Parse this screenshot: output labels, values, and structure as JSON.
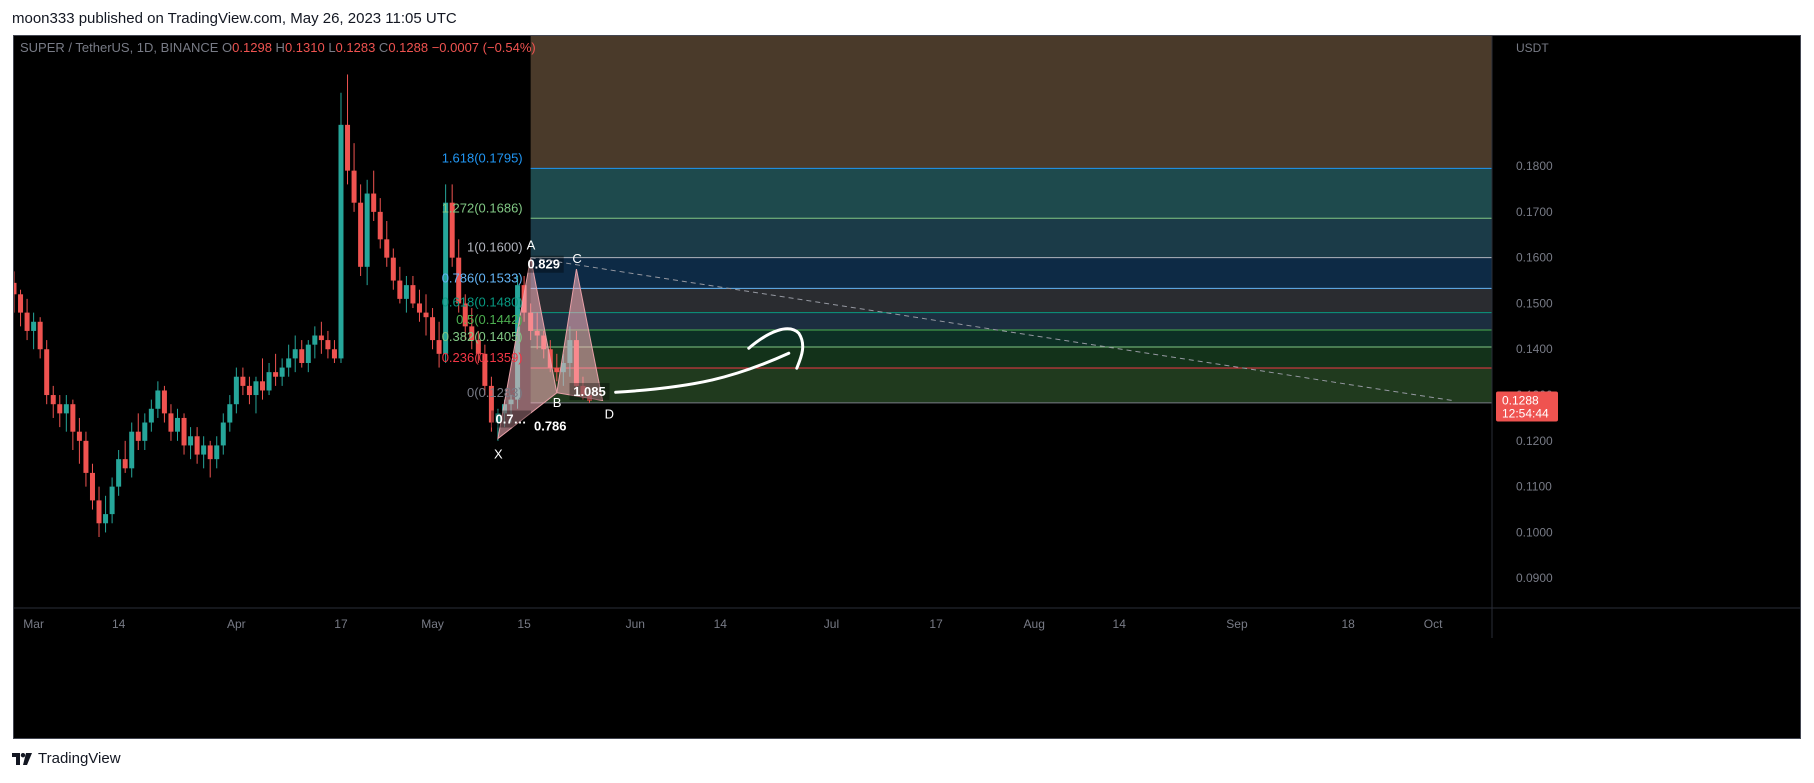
{
  "header": {
    "published": "moon333 published on TradingView.com, May 26, 2023 11:05 UTC"
  },
  "footer": {
    "brand": "TradingView",
    "logo_icon": "tradingview-logo-icon"
  },
  "colors": {
    "background": "#000000",
    "up_candle": "#26a69a",
    "down_candle": "#ef5350",
    "price_tag": "#ef5350",
    "grid_text": "#787b86"
  },
  "chart_data": {
    "type": "candlestick",
    "symbol_line": {
      "symbol": "SUPER / TetherUS, 1D, BINANCE",
      "o_label": "O",
      "o": "0.1298",
      "h_label": "H",
      "h": "0.1310",
      "l_label": "L",
      "l": "0.1283",
      "c_label": "C",
      "c": "0.1288",
      "change": "−0.0007 (−0.54%)"
    },
    "y_axis": {
      "unit": "USDT",
      "ticks": [
        "0.1800",
        "0.1700",
        "0.1600",
        "0.1500",
        "0.1400",
        "0.1300",
        "0.1200",
        "0.1100",
        "0.1000",
        "0.0900"
      ],
      "tick_values": [
        0.18,
        0.17,
        0.16,
        0.15,
        0.14,
        0.13,
        0.12,
        0.11,
        0.1,
        0.09
      ],
      "range": [
        0.0835,
        0.2084
      ]
    },
    "x_axis": {
      "ticks": [
        "Mar",
        "14",
        "Apr",
        "17",
        "May",
        "15",
        "Jun",
        "14",
        "Jul",
        "17",
        "Aug",
        "14",
        "Sep",
        "18",
        "Oct"
      ],
      "tick_dates": [
        "2023-03-01",
        "2023-03-14",
        "2023-04-01",
        "2023-04-17",
        "2023-05-01",
        "2023-05-15",
        "2023-06-01",
        "2023-06-14",
        "2023-07-01",
        "2023-07-17",
        "2023-08-01",
        "2023-08-14",
        "2023-09-01",
        "2023-09-18",
        "2023-10-01"
      ],
      "range": [
        "2023-02-26",
        "2023-10-10"
      ]
    },
    "last_price": {
      "value": "0.1288",
      "countdown": "12:54:44"
    },
    "candles": {
      "start_date": "2023-02-26",
      "ohlc": [
        [
          0.1545,
          0.157,
          0.148,
          0.152
        ],
        [
          0.152,
          0.153,
          0.145,
          0.148
        ],
        [
          0.148,
          0.151,
          0.142,
          0.144
        ],
        [
          0.144,
          0.148,
          0.14,
          0.146
        ],
        [
          0.146,
          0.147,
          0.138,
          0.14
        ],
        [
          0.14,
          0.142,
          0.128,
          0.13
        ],
        [
          0.13,
          0.132,
          0.125,
          0.128
        ],
        [
          0.128,
          0.13,
          0.123,
          0.126
        ],
        [
          0.126,
          0.13,
          0.122,
          0.128
        ],
        [
          0.128,
          0.129,
          0.118,
          0.122
        ],
        [
          0.122,
          0.125,
          0.115,
          0.12
        ],
        [
          0.12,
          0.122,
          0.11,
          0.113
        ],
        [
          0.113,
          0.115,
          0.105,
          0.107
        ],
        [
          0.107,
          0.11,
          0.099,
          0.102
        ],
        [
          0.102,
          0.108,
          0.1,
          0.104
        ],
        [
          0.104,
          0.112,
          0.102,
          0.11
        ],
        [
          0.11,
          0.118,
          0.108,
          0.116
        ],
        [
          0.116,
          0.12,
          0.113,
          0.114
        ],
        [
          0.114,
          0.124,
          0.112,
          0.122
        ],
        [
          0.122,
          0.126,
          0.118,
          0.12
        ],
        [
          0.12,
          0.126,
          0.118,
          0.124
        ],
        [
          0.124,
          0.129,
          0.122,
          0.127
        ],
        [
          0.127,
          0.133,
          0.125,
          0.131
        ],
        [
          0.131,
          0.132,
          0.124,
          0.126
        ],
        [
          0.126,
          0.128,
          0.12,
          0.122
        ],
        [
          0.122,
          0.127,
          0.12,
          0.125
        ],
        [
          0.125,
          0.126,
          0.117,
          0.119
        ],
        [
          0.119,
          0.123,
          0.116,
          0.121
        ],
        [
          0.121,
          0.123,
          0.115,
          0.117
        ],
        [
          0.117,
          0.121,
          0.114,
          0.119
        ],
        [
          0.119,
          0.12,
          0.112,
          0.116
        ],
        [
          0.116,
          0.121,
          0.114,
          0.119
        ],
        [
          0.119,
          0.126,
          0.117,
          0.124
        ],
        [
          0.124,
          0.13,
          0.122,
          0.128
        ],
        [
          0.128,
          0.136,
          0.126,
          0.134
        ],
        [
          0.134,
          0.136,
          0.13,
          0.132
        ],
        [
          0.132,
          0.134,
          0.128,
          0.13
        ],
        [
          0.13,
          0.134,
          0.126,
          0.133
        ],
        [
          0.133,
          0.138,
          0.129,
          0.131
        ],
        [
          0.131,
          0.137,
          0.13,
          0.135
        ],
        [
          0.135,
          0.139,
          0.132,
          0.134
        ],
        [
          0.134,
          0.138,
          0.132,
          0.136
        ],
        [
          0.136,
          0.141,
          0.134,
          0.138
        ],
        [
          0.138,
          0.143,
          0.135,
          0.14
        ],
        [
          0.14,
          0.142,
          0.136,
          0.137
        ],
        [
          0.137,
          0.142,
          0.135,
          0.141
        ],
        [
          0.141,
          0.145,
          0.138,
          0.143
        ],
        [
          0.143,
          0.146,
          0.139,
          0.142
        ],
        [
          0.142,
          0.144,
          0.138,
          0.14
        ],
        [
          0.14,
          0.142,
          0.137,
          0.138
        ],
        [
          0.138,
          0.196,
          0.137,
          0.189
        ],
        [
          0.189,
          0.2,
          0.176,
          0.179
        ],
        [
          0.179,
          0.185,
          0.17,
          0.172
        ],
        [
          0.172,
          0.176,
          0.156,
          0.158
        ],
        [
          0.158,
          0.177,
          0.154,
          0.174
        ],
        [
          0.174,
          0.179,
          0.168,
          0.17
        ],
        [
          0.17,
          0.173,
          0.162,
          0.164
        ],
        [
          0.164,
          0.168,
          0.158,
          0.16
        ],
        [
          0.16,
          0.162,
          0.153,
          0.155
        ],
        [
          0.155,
          0.158,
          0.15,
          0.151
        ],
        [
          0.151,
          0.156,
          0.148,
          0.154
        ],
        [
          0.154,
          0.156,
          0.149,
          0.15
        ],
        [
          0.15,
          0.153,
          0.146,
          0.148
        ],
        [
          0.148,
          0.152,
          0.143,
          0.147
        ],
        [
          0.147,
          0.149,
          0.14,
          0.142
        ],
        [
          0.142,
          0.146,
          0.136,
          0.139
        ],
        [
          0.139,
          0.176,
          0.137,
          0.172
        ],
        [
          0.172,
          0.176,
          0.158,
          0.16
        ],
        [
          0.16,
          0.164,
          0.148,
          0.15
        ],
        [
          0.15,
          0.152,
          0.142,
          0.145
        ],
        [
          0.145,
          0.149,
          0.14,
          0.142
        ],
        [
          0.142,
          0.144,
          0.137,
          0.139
        ],
        [
          0.139,
          0.141,
          0.13,
          0.132
        ],
        [
          0.132,
          0.134,
          0.122,
          0.124
        ],
        [
          0.124,
          0.127,
          0.12,
          0.126
        ],
        [
          0.126,
          0.129,
          0.123,
          0.128
        ],
        [
          0.128,
          0.13,
          0.124,
          0.129
        ],
        [
          0.129,
          0.156,
          0.127,
          0.154
        ],
        [
          0.154,
          0.156,
          0.146,
          0.148
        ],
        [
          0.148,
          0.15,
          0.142,
          0.144
        ],
        [
          0.144,
          0.148,
          0.14,
          0.143
        ],
        [
          0.143,
          0.144,
          0.138,
          0.14
        ],
        [
          0.14,
          0.142,
          0.135,
          0.136
        ],
        [
          0.136,
          0.139,
          0.133,
          0.135
        ],
        [
          0.135,
          0.139,
          0.132,
          0.137
        ],
        [
          0.137,
          0.145,
          0.134,
          0.142
        ],
        [
          0.142,
          0.144,
          0.131,
          0.132
        ],
        [
          0.132,
          0.134,
          0.129,
          0.13
        ],
        [
          0.13,
          0.131,
          0.1283,
          0.1288
        ]
      ]
    },
    "fib_levels": [
      {
        "label": "1.618(0.1795)",
        "value": 0.1795,
        "color": "#2196f3",
        "fill": "#1e4a4d"
      },
      {
        "label": "1.272(0.1686)",
        "value": 0.1686,
        "color": "#81c784",
        "fill": "#1b3b48"
      },
      {
        "label": "1(0.1600)",
        "value": 0.16,
        "color": "#b2b5be",
        "fill": "#0d2a45"
      },
      {
        "label": "0.786(0.1533)",
        "value": 0.1533,
        "color": "#64b5f6",
        "fill": "#2a2c30"
      },
      {
        "label": "0.618(0.1480)",
        "value": 0.148,
        "color": "#089981",
        "fill": "#1c2e40"
      },
      {
        "label": "0.5(0.1442)",
        "value": 0.1442,
        "color": "#4caf50",
        "fill": "#0d3025"
      },
      {
        "label": "0.382(0.1405)",
        "value": 0.1405,
        "color": "#81c784",
        "fill": "#13321a"
      },
      {
        "label": "0.236(0.1359)",
        "value": 0.1359,
        "color": "#f23645",
        "fill": "#203a1e"
      },
      {
        "label": "0(0.1283)",
        "value": 0.1283,
        "color": "#787b86",
        "fill": "#3c1414"
      }
    ],
    "fib_top_fill": "#4a3a2a",
    "harmonic_pattern": {
      "points": [
        {
          "label": "X",
          "date": "2023-05-11",
          "price": 0.1205
        },
        {
          "label": "A",
          "date": "2023-05-16",
          "price": 0.16
        },
        {
          "label": "B",
          "date": "2023-05-20",
          "price": 0.1305
        },
        {
          "label": "C",
          "date": "2023-05-23",
          "price": 0.1575
        },
        {
          "label": "D",
          "date": "2023-05-27",
          "price": 0.1288
        }
      ],
      "ratios": [
        {
          "text": "0.829",
          "date": "2023-05-18",
          "price": 0.1578
        },
        {
          "text": "0.786",
          "date": "2023-05-19",
          "price": 0.1225
        },
        {
          "text": "0.7…",
          "date": "2023-05-13",
          "price": 0.124
        },
        {
          "text": "1.085",
          "date": "2023-05-25",
          "price": 0.13
        }
      ]
    },
    "trend_line": {
      "from_date": "2023-05-16",
      "from_price": 0.16,
      "to_date": "2023-10-04",
      "to_price": 0.1288
    }
  }
}
